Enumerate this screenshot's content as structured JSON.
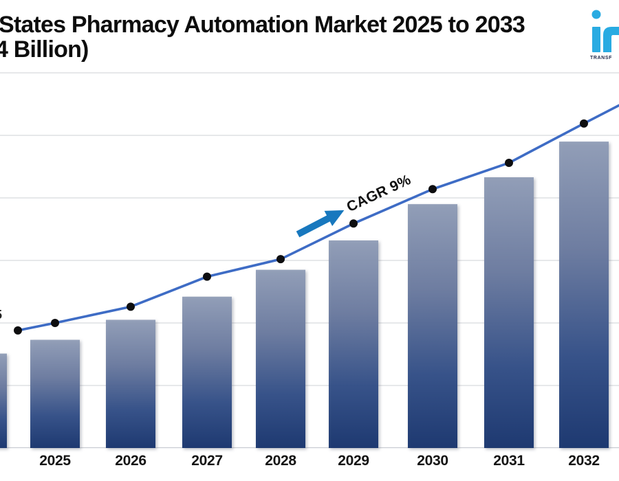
{
  "title": {
    "line1": "States Pharmacy Automation Market 2025 to 2033",
    "line2": "4 Billion)"
  },
  "logo": {
    "mark": "in-logo-fragment",
    "tagline_fragment": "TRANSF",
    "brand_color": "#29ABE2"
  },
  "axis_fragment": {
    "cropped_label": "5"
  },
  "chart_data": {
    "type": "combo",
    "title": "States Pharmacy Automation Market 2025 to 2033",
    "subtitle_fragment": "4 Billion)",
    "annotation": "CAGR 9%",
    "categories": [
      "2025",
      "2026",
      "2027",
      "2028",
      "2029",
      "2030",
      "2031",
      "2032"
    ],
    "series": [
      {
        "name": "market-size-bars",
        "type": "bar",
        "values_grid_units": [
          1.73,
          2.05,
          2.42,
          2.85,
          3.32,
          3.9,
          4.33,
          4.9
        ]
      },
      {
        "name": "trend-line",
        "type": "line",
        "values_grid_units": [
          2.0,
          2.26,
          2.74,
          3.02,
          3.59,
          4.14,
          4.56,
          5.19
        ]
      }
    ],
    "cropped_left_bar_units": 1.51,
    "line_leading_point_units": 1.88,
    "line_right_exit_units": 5.48,
    "xlabel": "",
    "ylabel": "",
    "y_axis": {
      "tick_labels_visible": false,
      "gridline_count": 7,
      "grid": true
    },
    "legend": "none"
  },
  "colors": {
    "bar_top": "#8F9CB6",
    "bar_mid1": "#69799E",
    "bar_mid2": "#2F4C85",
    "bar_bottom": "#14316B",
    "line": "#3E6CC5",
    "dot": "#0E0E10",
    "arrow": "#1878BE",
    "gridline": "#D7D9DD",
    "axis_line": "#C9CCD2"
  }
}
